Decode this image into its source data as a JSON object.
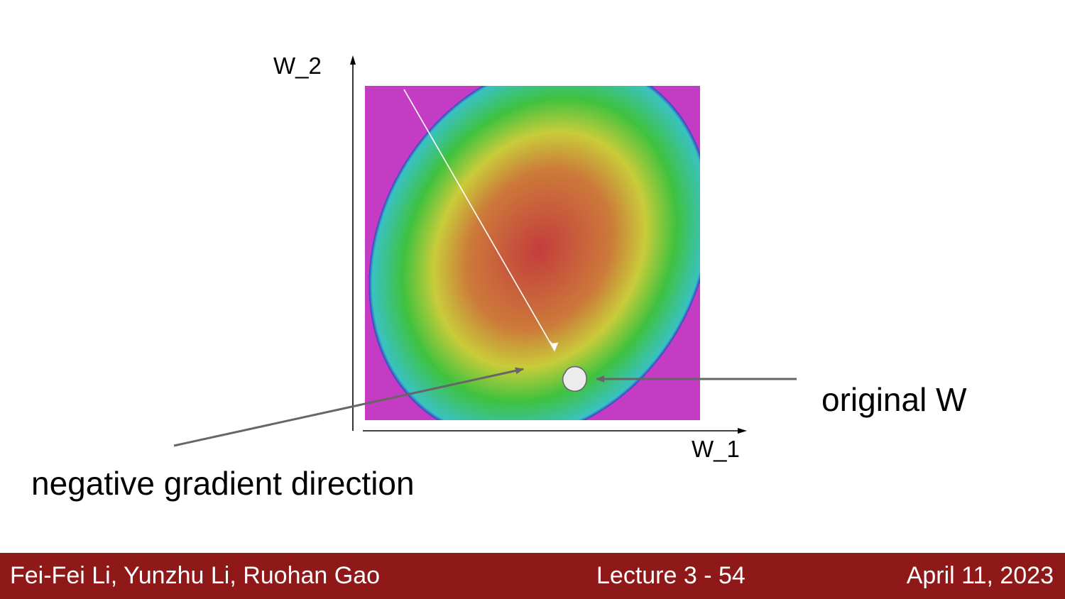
{
  "diagram": {
    "axis_labels": {
      "x": "W_1",
      "y": "W_2"
    },
    "annotations": {
      "original_point": "original W",
      "gradient_arrow": "negative gradient direction"
    },
    "colors": {
      "heatmap_center": "#c43d3d",
      "heatmap_ring_orange": "#cc7a3a",
      "heatmap_ring_yellow": "#c9cc3a",
      "heatmap_ring_green": "#3fc23f",
      "heatmap_ring_cyan": "#39c2c2",
      "heatmap_ring_blue": "#3c3cc4",
      "heatmap_ring_magenta": "#c43cc4",
      "annotation_arrow": "#666666",
      "gradient_line": "#ffffff"
    }
  },
  "footer": {
    "authors": "Fei-Fei Li, Yunzhu Li, Ruohan Gao",
    "lecture": "Lecture 3 -   54",
    "date": "April 11, 2023",
    "background": "#8f1818"
  }
}
